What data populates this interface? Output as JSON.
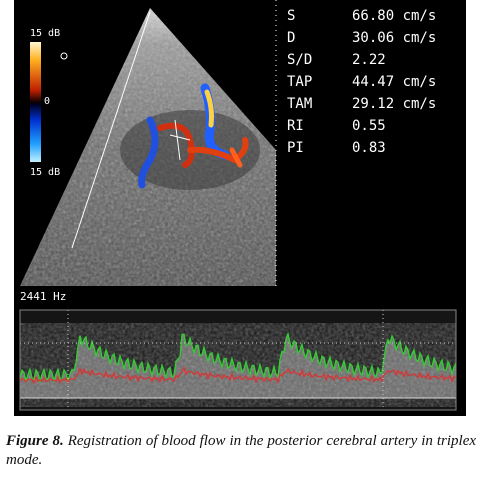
{
  "image": {
    "colorbar": {
      "top": "15 dB",
      "middle": "0",
      "bottom": "15 dB"
    },
    "prf": "2441 Hz",
    "measurements": [
      {
        "label": "S",
        "value": "66.80 cm/s"
      },
      {
        "label": "D",
        "value": "30.06 cm/s"
      },
      {
        "label": "S/D",
        "value": "2.22"
      },
      {
        "label": "TAP",
        "value": "44.47 cm/s"
      },
      {
        "label": "TAM",
        "value": "29.12 cm/s"
      },
      {
        "label": "RI",
        "value": "0.55"
      },
      {
        "label": "PI",
        "value": "0.83"
      }
    ]
  },
  "caption": {
    "label": "Figure 8.",
    "text": "Registration of blood flow in the posterior cerebral artery in triplex mode."
  }
}
